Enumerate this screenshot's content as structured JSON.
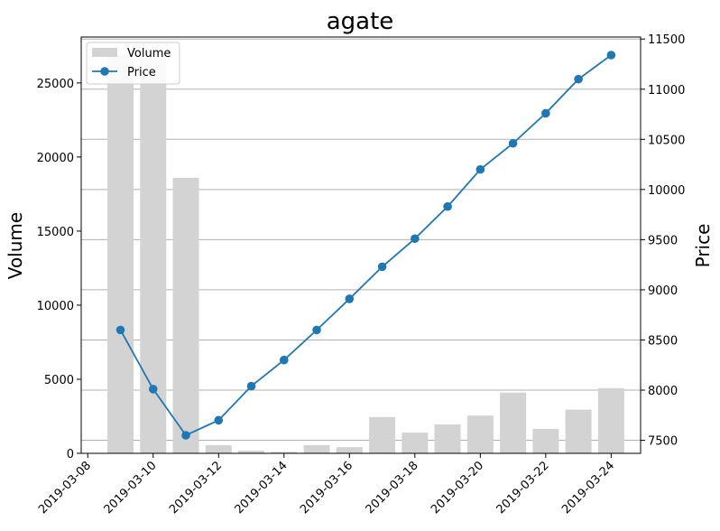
{
  "chart_data": {
    "type": "bar+line",
    "title": "agate",
    "xlabel": "",
    "ylabel_left": "Volume",
    "ylabel_right": "Price",
    "x": [
      "2019-03-09",
      "2019-03-10",
      "2019-03-11",
      "2019-03-12",
      "2019-03-13",
      "2019-03-14",
      "2019-03-15",
      "2019-03-16",
      "2019-03-17",
      "2019-03-18",
      "2019-03-19",
      "2019-03-20",
      "2019-03-21",
      "2019-03-22",
      "2019-03-23",
      "2019-03-24"
    ],
    "x_ticks": [
      "2019-03-08",
      "2019-03-10",
      "2019-03-12",
      "2019-03-14",
      "2019-03-16",
      "2019-03-18",
      "2019-03-20",
      "2019-03-22",
      "2019-03-24"
    ],
    "series": [
      {
        "name": "Volume",
        "kind": "bar",
        "axis": "left",
        "color": "#d3d3d3",
        "values": [
          26900,
          26700,
          18600,
          550,
          180,
          100,
          550,
          420,
          2450,
          1400,
          1950,
          2550,
          4100,
          1650,
          2950,
          4400
        ]
      },
      {
        "name": "Price",
        "kind": "line",
        "axis": "right",
        "color": "#1f77b4",
        "values": [
          8600,
          8010,
          7550,
          7700,
          8040,
          8300,
          8600,
          8910,
          9230,
          9510,
          9830,
          10200,
          10460,
          10760,
          11100,
          11340
        ]
      }
    ],
    "y_left_ticks": [
      0,
      5000,
      10000,
      15000,
      20000,
      25000
    ],
    "y_left_range": [
      0,
      28100
    ],
    "y_right_ticks": [
      7500,
      8000,
      8500,
      9000,
      9500,
      10000,
      10500,
      11000,
      11500
    ],
    "y_right_range": [
      7370,
      11520
    ],
    "x_range_start": "2019-03-08",
    "x_range_days": [
      -0.2,
      16.9
    ],
    "grid": "horizontal-right",
    "legend_position": "top-left"
  }
}
